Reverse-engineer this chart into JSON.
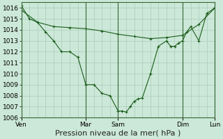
{
  "bg_color": "#cce8d8",
  "grid_color": "#aaccbb",
  "line_color": "#1a5c1a",
  "marker_color": "#1a5c1a",
  "xlabel": "Pression niveau de la mer( hPa )",
  "ylim": [
    1006,
    1016.5
  ],
  "yticks": [
    1006,
    1007,
    1008,
    1009,
    1010,
    1011,
    1012,
    1013,
    1014,
    1015,
    1016
  ],
  "xlabel_fontsize": 8,
  "tick_fontsize": 6.5,
  "day_labels": [
    "Ven",
    "Mar",
    "Sam",
    "Dim",
    "Lun"
  ],
  "day_positions": [
    0,
    0.333,
    0.5,
    0.833,
    1.0
  ],
  "total_days": 4.0,
  "line1_x": [
    0.0,
    0.042,
    0.083,
    0.125,
    0.167,
    0.208,
    0.25,
    0.292,
    0.333,
    0.375,
    0.417,
    0.458,
    0.5,
    0.521,
    0.542,
    0.563,
    0.583,
    0.604,
    0.625,
    0.667,
    0.708,
    0.75,
    0.771,
    0.792,
    0.813,
    0.833,
    0.854,
    0.875,
    0.917,
    0.958,
    1.0
  ],
  "line1_y": [
    1016.2,
    1015.0,
    1014.7,
    1013.8,
    1013.0,
    1012.0,
    1012.0,
    1011.5,
    1009.0,
    1009.0,
    1008.2,
    1008.0,
    1006.6,
    1006.6,
    1006.5,
    1007.0,
    1007.5,
    1007.7,
    1007.8,
    1010.0,
    1012.5,
    1013.0,
    1012.5,
    1012.5,
    1012.8,
    1013.0,
    1013.8,
    1014.3,
    1013.0,
    1015.5,
    1016.0
  ],
  "line2_x": [
    0.0,
    0.083,
    0.167,
    0.25,
    0.333,
    0.417,
    0.5,
    0.583,
    0.667,
    0.75,
    0.833,
    0.917,
    1.0
  ],
  "line2_y": [
    1015.8,
    1014.7,
    1014.3,
    1014.2,
    1014.1,
    1013.9,
    1013.6,
    1013.4,
    1013.2,
    1013.3,
    1013.5,
    1014.5,
    1016.0
  ],
  "vline_positions": [
    0.0,
    0.333,
    0.5,
    0.833,
    1.0
  ],
  "vline_color": "#336633"
}
